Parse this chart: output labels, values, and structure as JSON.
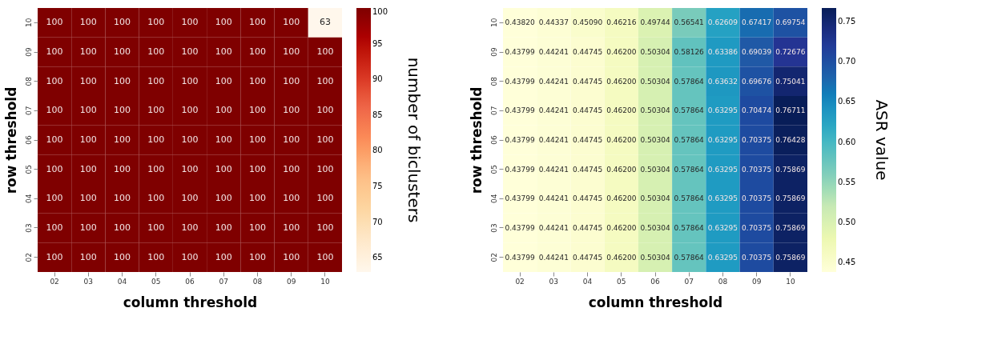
{
  "chart_data": [
    {
      "type": "heatmap",
      "xlabel": "column threshold",
      "ylabel": "row threshold",
      "clabel": "number of biclusters",
      "categories": [
        "02",
        "03",
        "04",
        "05",
        "06",
        "07",
        "08",
        "09",
        "10"
      ],
      "y_categories": [
        "10",
        "09",
        "08",
        "07",
        "06",
        "05",
        "04",
        "03",
        "02"
      ],
      "cells": [
        [
          100,
          100,
          100,
          100,
          100,
          100,
          100,
          100,
          63
        ],
        [
          100,
          100,
          100,
          100,
          100,
          100,
          100,
          100,
          100
        ],
        [
          100,
          100,
          100,
          100,
          100,
          100,
          100,
          100,
          100
        ],
        [
          100,
          100,
          100,
          100,
          100,
          100,
          100,
          100,
          100
        ],
        [
          100,
          100,
          100,
          100,
          100,
          100,
          100,
          100,
          100
        ],
        [
          100,
          100,
          100,
          100,
          100,
          100,
          100,
          100,
          100
        ],
        [
          100,
          100,
          100,
          100,
          100,
          100,
          100,
          100,
          100
        ],
        [
          100,
          100,
          100,
          100,
          100,
          100,
          100,
          100,
          100
        ],
        [
          100,
          100,
          100,
          100,
          100,
          100,
          100,
          100,
          100
        ]
      ],
      "data_labels": true,
      "clim": [
        63,
        100
      ],
      "cticks": [
        65,
        70,
        75,
        80,
        85,
        90,
        95,
        100
      ],
      "colors": [
        "#fff7ec",
        "#fee8c8",
        "#fdd49e",
        "#fdbb84",
        "#fc8d59",
        "#ef6548",
        "#d7301f",
        "#b30000",
        "#7f0000"
      ]
    },
    {
      "type": "heatmap",
      "xlabel": "column threshold",
      "ylabel": "row threshold",
      "clabel": "ASR value",
      "categories": [
        "02",
        "03",
        "04",
        "05",
        "06",
        "07",
        "08",
        "09",
        "10"
      ],
      "y_categories": [
        "10",
        "09",
        "08",
        "07",
        "06",
        "05",
        "04",
        "03",
        "02"
      ],
      "cells": [
        [
          0.4382,
          0.44337,
          0.4509,
          0.46216,
          0.49744,
          0.56541,
          0.62609,
          0.67417,
          0.69754
        ],
        [
          0.43799,
          0.44241,
          0.44745,
          0.462,
          0.50304,
          0.58126,
          0.63386,
          0.69039,
          0.72676
        ],
        [
          0.43799,
          0.44241,
          0.44745,
          0.462,
          0.50304,
          0.57864,
          0.63632,
          0.69676,
          0.75041
        ],
        [
          0.43799,
          0.44241,
          0.44745,
          0.462,
          0.50304,
          0.57864,
          0.63295,
          0.70474,
          0.76711
        ],
        [
          0.43799,
          0.44241,
          0.44745,
          0.462,
          0.50304,
          0.57864,
          0.63295,
          0.70375,
          0.76428
        ],
        [
          0.43799,
          0.44241,
          0.44745,
          0.462,
          0.50304,
          0.57864,
          0.63295,
          0.70375,
          0.75869
        ],
        [
          0.43799,
          0.44241,
          0.44745,
          0.462,
          0.50304,
          0.57864,
          0.63295,
          0.70375,
          0.75869
        ],
        [
          0.43799,
          0.44241,
          0.44745,
          0.462,
          0.50304,
          0.57864,
          0.63295,
          0.70375,
          0.75869
        ],
        [
          0.43799,
          0.44241,
          0.44745,
          0.462,
          0.50304,
          0.57864,
          0.63295,
          0.70375,
          0.75869
        ]
      ],
      "cell_labels": [
        [
          "0.43820",
          "0.44337",
          "0.45090",
          "0.46216",
          "0.49744",
          "0.56541",
          "0.62609",
          "0.67417",
          "0.69754"
        ],
        [
          "0.43799",
          "0.44241",
          "0.44745",
          "0.46200",
          "0.50304",
          "0.58126",
          "0.63386",
          "0.69039",
          "0.72676"
        ],
        [
          "0.43799",
          "0.44241",
          "0.44745",
          "0.46200",
          "0.50304",
          "0.57864",
          "0.63632",
          "0.69676",
          "0.75041"
        ],
        [
          "0.43799",
          "0.44241",
          "0.44745",
          "0.46200",
          "0.50304",
          "0.57864",
          "0.63295",
          "0.70474",
          "0.76711"
        ],
        [
          "0.43799",
          "0.44241",
          "0.44745",
          "0.46200",
          "0.50304",
          "0.57864",
          "0.63295",
          "0.70375",
          "0.76428"
        ],
        [
          "0.43799",
          "0.44241",
          "0.44745",
          "0.46200",
          "0.50304",
          "0.57864",
          "0.63295",
          "0.70375",
          "0.75869"
        ],
        [
          "0.43799",
          "0.44241",
          "0.44745",
          "0.46200",
          "0.50304",
          "0.57864",
          "0.63295",
          "0.70375",
          "0.75869"
        ],
        [
          "0.43799",
          "0.44241",
          "0.44745",
          "0.46200",
          "0.50304",
          "0.57864",
          "0.63295",
          "0.70375",
          "0.75869"
        ],
        [
          "0.43799",
          "0.44241",
          "0.44745",
          "0.46200",
          "0.50304",
          "0.57864",
          "0.63295",
          "0.70375",
          "0.75869"
        ]
      ],
      "clim": [
        0.43799,
        0.76711
      ],
      "cticks": [
        0.45,
        {
          "value": 0.5,
          "label": "0.50"
        },
        0.55,
        {
          "value": 0.6,
          "label": "0.60"
        },
        0.65,
        {
          "value": 0.7,
          "label": "0.70"
        },
        0.75
      ],
      "colors": [
        "#ffffd9",
        "#edf8b1",
        "#c7e9b4",
        "#7fcdbb",
        "#41b6c4",
        "#1d91c0",
        "#225ea8",
        "#253494",
        "#081d58"
      ]
    }
  ]
}
